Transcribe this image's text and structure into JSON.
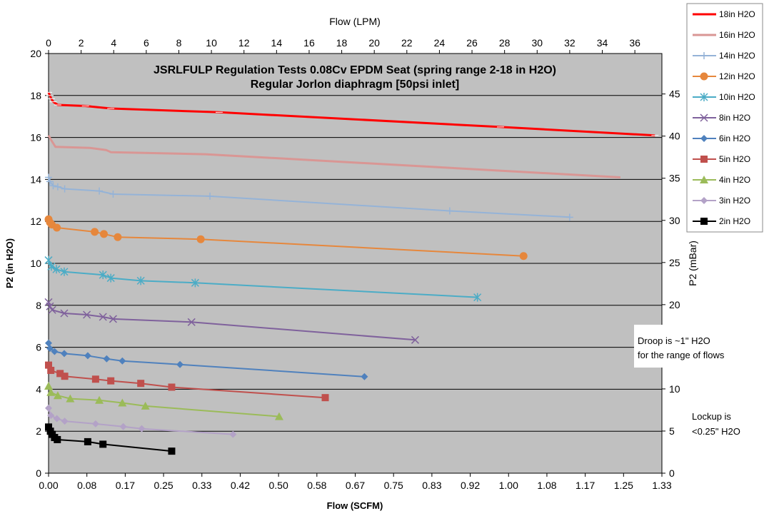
{
  "chart_data": {
    "type": "line",
    "title": "JSRLFULP Regulation Tests 0.08Cv EPDM Seat (spring range 2-18 in H2O)",
    "subtitle": "Regular Jorlon diaphragm [50psi inlet]",
    "xlabel": "Flow (SCFM)",
    "ylabel": "P2 (in H2O)",
    "x2label": "Flow (LPM)",
    "y2label": "P2 (mBar)",
    "xlim": [
      0,
      1.33
    ],
    "ylim": [
      0,
      20
    ],
    "x2lim": [
      0,
      37.66
    ],
    "y2lim": [
      0,
      49.8
    ],
    "xticks": [
      "0.00",
      "0.08",
      "0.17",
      "0.25",
      "0.33",
      "0.42",
      "0.50",
      "0.58",
      "0.67",
      "0.75",
      "0.83",
      "0.92",
      "1.00",
      "1.08",
      "1.17",
      "1.25",
      "1.33"
    ],
    "yticks": [
      "0",
      "2",
      "4",
      "6",
      "8",
      "10",
      "12",
      "14",
      "16",
      "18",
      "20"
    ],
    "x2ticks": [
      "0",
      "2",
      "4",
      "6",
      "8",
      "10",
      "12",
      "14",
      "16",
      "18",
      "20",
      "22",
      "24",
      "26",
      "28",
      "30",
      "32",
      "34",
      "36"
    ],
    "y2ticks": [
      "0",
      "5",
      "10",
      "15",
      "20",
      "25",
      "30",
      "35",
      "40",
      "45"
    ],
    "grid": true,
    "legend_position": "right",
    "series": [
      {
        "name": "18in H2O",
        "color": "#ff0000",
        "marker": "dash",
        "width": 3,
        "x": [
          0.0,
          0.003,
          0.006,
          0.01,
          0.02,
          0.08,
          0.135,
          0.37,
          0.98,
          1.315
        ],
        "y": [
          18.15,
          18.0,
          17.85,
          17.7,
          17.55,
          17.5,
          17.38,
          17.2,
          16.5,
          16.1
        ]
      },
      {
        "name": "16in H2O",
        "color": "#d99694",
        "marker": "none",
        "width": 3,
        "x": [
          0.0,
          0.005,
          0.015,
          0.09,
          0.125,
          0.135,
          0.34,
          1.24
        ],
        "y": [
          16.1,
          15.9,
          15.55,
          15.5,
          15.4,
          15.3,
          15.2,
          14.1
        ]
      },
      {
        "name": "14in H2O",
        "color": "#95b3d7",
        "marker": "plus",
        "width": 2,
        "x": [
          0.0,
          0.003,
          0.01,
          0.02,
          0.035,
          0.11,
          0.14,
          0.35,
          0.87,
          1.13
        ],
        "y": [
          14.1,
          13.9,
          13.7,
          13.65,
          13.55,
          13.45,
          13.3,
          13.2,
          12.5,
          12.2
        ]
      },
      {
        "name": "12in H2O",
        "color": "#e6873c",
        "marker": "circle",
        "width": 2,
        "x": [
          0.0,
          0.003,
          0.007,
          0.018,
          0.1,
          0.12,
          0.15,
          0.33,
          1.03
        ],
        "y": [
          12.1,
          11.95,
          11.85,
          11.7,
          11.5,
          11.4,
          11.25,
          11.15,
          10.35
        ]
      },
      {
        "name": "10in H2O",
        "color": "#4bacc6",
        "marker": "star",
        "width": 2,
        "x": [
          0.0,
          0.006,
          0.017,
          0.034,
          0.118,
          0.135,
          0.2,
          0.318,
          0.93
        ],
        "y": [
          10.15,
          9.85,
          9.72,
          9.6,
          9.45,
          9.3,
          9.17,
          9.07,
          8.38
        ]
      },
      {
        "name": "8in H2O",
        "color": "#7f619c",
        "marker": "x",
        "width": 2,
        "x": [
          0.0,
          0.003,
          0.008,
          0.034,
          0.083,
          0.118,
          0.14,
          0.31,
          0.795
        ],
        "y": [
          8.15,
          7.95,
          7.78,
          7.62,
          7.55,
          7.45,
          7.35,
          7.2,
          6.35
        ]
      },
      {
        "name": "6in H2O",
        "color": "#4f81bd",
        "marker": "diamond",
        "width": 2,
        "x": [
          0.0,
          0.003,
          0.013,
          0.034,
          0.085,
          0.126,
          0.16,
          0.285,
          0.685
        ],
        "y": [
          6.2,
          5.95,
          5.8,
          5.7,
          5.6,
          5.45,
          5.35,
          5.18,
          4.6
        ]
      },
      {
        "name": "5in H2O",
        "color": "#c0504d",
        "marker": "square",
        "width": 2,
        "x": [
          0.0,
          0.005,
          0.025,
          0.035,
          0.102,
          0.135,
          0.2,
          0.267,
          0.6
        ],
        "y": [
          5.15,
          4.9,
          4.75,
          4.62,
          4.48,
          4.4,
          4.28,
          4.1,
          3.6
        ]
      },
      {
        "name": "4in H2O",
        "color": "#9bbb59",
        "marker": "triangle",
        "width": 2,
        "x": [
          0.0,
          0.005,
          0.02,
          0.047,
          0.11,
          0.16,
          0.21,
          0.5
        ],
        "y": [
          4.15,
          3.85,
          3.7,
          3.55,
          3.48,
          3.35,
          3.2,
          2.7
        ]
      },
      {
        "name": "3in H2O",
        "color": "#b3a2c7",
        "marker": "diamond",
        "width": 2,
        "x": [
          0.0,
          0.005,
          0.018,
          0.035,
          0.102,
          0.162,
          0.202,
          0.4
        ],
        "y": [
          3.1,
          2.75,
          2.6,
          2.48,
          2.35,
          2.22,
          2.12,
          1.85
        ]
      },
      {
        "name": "2in H2O",
        "color": "#000000",
        "marker": "square",
        "width": 2,
        "x": [
          0.0,
          0.004,
          0.008,
          0.013,
          0.019,
          0.085,
          0.118,
          0.267
        ],
        "y": [
          2.2,
          2.0,
          1.85,
          1.7,
          1.6,
          1.5,
          1.38,
          1.05
        ]
      }
    ],
    "annotations": [
      {
        "lines": [
          "Droop is ~1\" H2O",
          "for the range of flows"
        ]
      },
      {
        "lines": [
          "Lockup is",
          "<0.25\" H2O"
        ]
      }
    ]
  }
}
